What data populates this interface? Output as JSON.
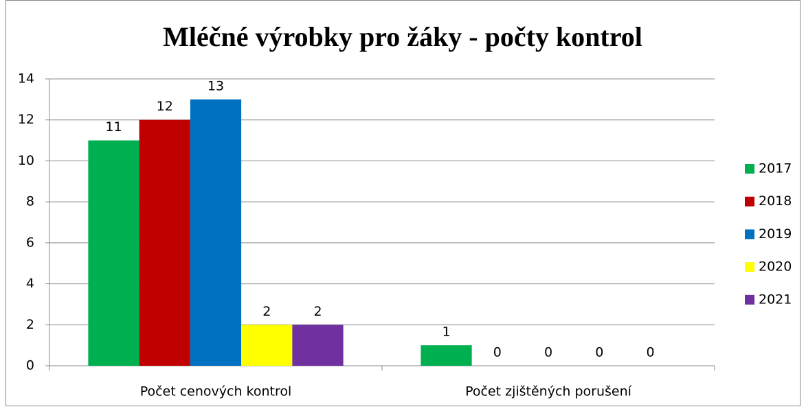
{
  "chart_data": {
    "type": "bar",
    "title": "Mléčné výrobky pro žáky - počty kontrol",
    "categories": [
      "Počet cenových kontrol",
      "Počet zjištěných porušení"
    ],
    "series": [
      {
        "name": "2017",
        "color": "#00b050",
        "values": [
          11,
          1
        ]
      },
      {
        "name": "2018",
        "color": "#c00000",
        "values": [
          12,
          0
        ]
      },
      {
        "name": "2019",
        "color": "#0070c0",
        "values": [
          13,
          0
        ]
      },
      {
        "name": "2020",
        "color": "#ffff00",
        "values": [
          2,
          0
        ]
      },
      {
        "name": "2021",
        "color": "#7030a0",
        "values": [
          2,
          0
        ]
      }
    ],
    "ylim": [
      0,
      14
    ],
    "yticks": [
      0,
      2,
      4,
      6,
      8,
      10,
      12,
      14
    ],
    "grid": true,
    "legend": "right"
  }
}
